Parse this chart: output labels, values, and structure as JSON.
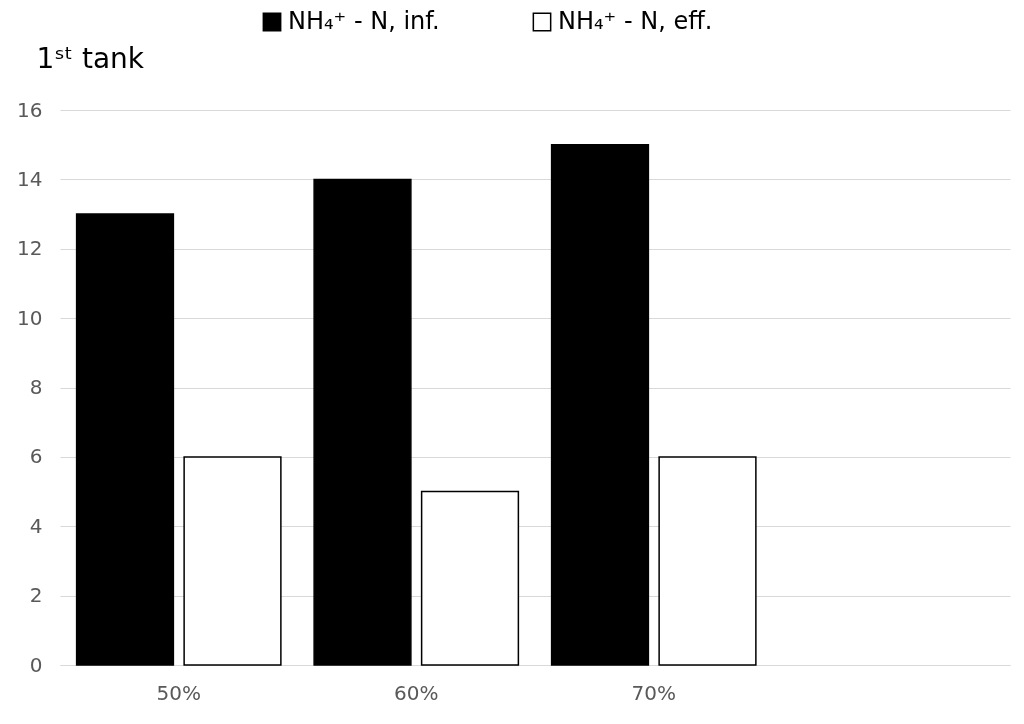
{
  "chart_data": {
    "type": "bar",
    "title": "1ˢᵗ tank",
    "categories": [
      "50%",
      "60%",
      "70%",
      null
    ],
    "series": [
      {
        "name": "NH₄⁺ - N, inf.",
        "color": "#000000",
        "values": [
          13,
          14,
          15,
          null
        ]
      },
      {
        "name": "NH₄⁺ - N, eff.",
        "color": "#ffffff",
        "values": [
          6,
          5,
          6,
          null
        ]
      }
    ],
    "ylim": [
      0,
      16
    ],
    "yticks": [
      0,
      2,
      4,
      6,
      8,
      10,
      12,
      14,
      16
    ],
    "grid": "y",
    "legend": "top"
  }
}
